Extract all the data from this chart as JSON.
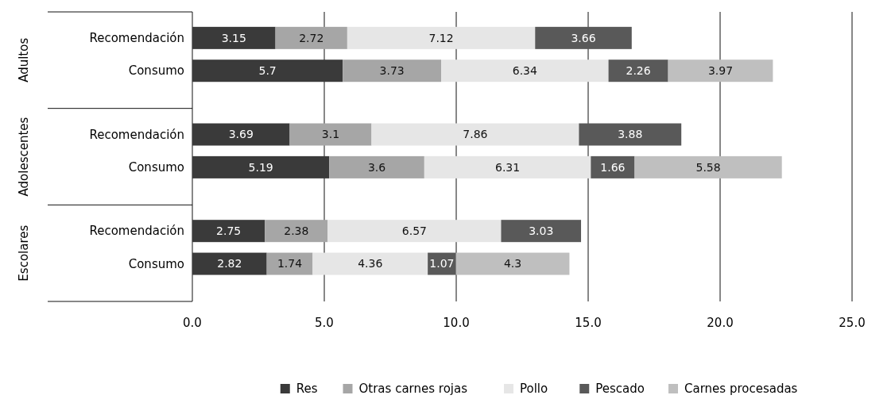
{
  "chart_data": {
    "type": "bar",
    "orientation": "horizontal",
    "stacked": true,
    "categories": [
      "Recomendación",
      "Consumo",
      "Recomendación",
      "Consumo",
      "Recomendación",
      "Consumo"
    ],
    "series": [
      {
        "name": "Res",
        "color": "#3a3a3a",
        "values": [
          3.15,
          5.7,
          3.69,
          5.19,
          2.75,
          2.82
        ]
      },
      {
        "name": "Otras carnes rojas",
        "color": "#a6a6a6",
        "values": [
          2.72,
          3.73,
          3.1,
          3.6,
          2.38,
          1.74
        ]
      },
      {
        "name": "Pollo",
        "color": "#e6e6e6",
        "values": [
          7.12,
          6.34,
          7.86,
          6.31,
          6.57,
          4.36
        ]
      },
      {
        "name": "Pescado",
        "color": "#595959",
        "values": [
          3.66,
          2.26,
          3.88,
          1.66,
          3.03,
          1.07
        ]
      },
      {
        "name": "Carnes procesadas",
        "color": "#bfbfbf",
        "values": [
          null,
          3.97,
          null,
          5.58,
          null,
          4.3
        ]
      }
    ],
    "xlim": [
      0,
      25
    ],
    "xticks": [
      {
        "value": 0,
        "label": "0.0"
      },
      {
        "value": 5,
        "label": "5.0"
      },
      {
        "value": 10,
        "label": "10.0"
      },
      {
        "value": 15,
        "label": "15.0"
      },
      {
        "value": 20,
        "label": "20.0"
      },
      {
        "value": 25,
        "label": "25.0"
      }
    ],
    "grid": "x",
    "data_labels": true,
    "legend": "bottom",
    "annotations": [
      "Adultos",
      "Adolescentes",
      "Escolares"
    ]
  }
}
